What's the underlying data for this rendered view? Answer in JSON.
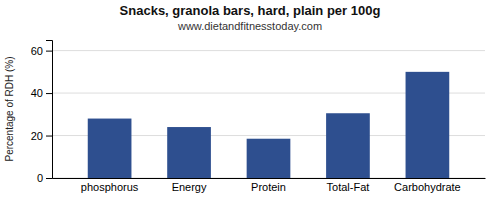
{
  "chart_data": {
    "type": "bar",
    "title": "Snacks, granola bars, hard, plain per 100g",
    "subtitle": "www.dietandfitnesstoday.com",
    "categories": [
      "phosphorus",
      "Energy",
      "Protein",
      "Total-Fat",
      "Carbohydrate"
    ],
    "values": [
      28.0,
      24.0,
      18.5,
      30.5,
      50.0
    ],
    "color": "#2e4f8f",
    "ylabel": "Percentage of RDH (%)",
    "ylim": [
      0,
      65
    ],
    "yticks": [
      0,
      20,
      40,
      60
    ],
    "grid": true
  }
}
